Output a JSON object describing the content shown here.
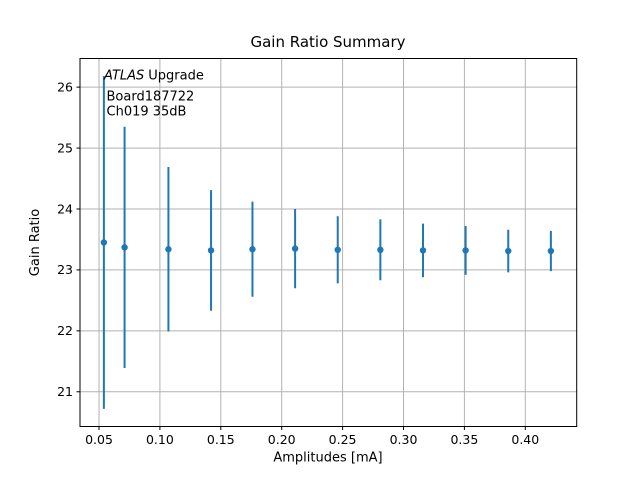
{
  "chart_data": {
    "type": "scatter",
    "title": "Gain Ratio Summary",
    "xlabel": "Amplitudes [mA]",
    "ylabel": "Gain Ratio",
    "annotation": {
      "line1_italic": "ATLAS",
      "line1_rest": "Upgrade",
      "line2": "Board187722",
      "line3": "Ch019 35dB"
    },
    "series": [
      {
        "name": "gain-ratio-vs-amplitude",
        "color": "#1f77b4",
        "x": [
          0.054,
          0.071,
          0.107,
          0.142,
          0.176,
          0.211,
          0.246,
          0.281,
          0.316,
          0.351,
          0.386,
          0.421
        ],
        "y": [
          23.45,
          23.37,
          23.34,
          23.32,
          23.34,
          23.35,
          23.33,
          23.33,
          23.32,
          23.32,
          23.31,
          23.31
        ],
        "yerr": [
          2.73,
          1.98,
          1.35,
          0.99,
          0.78,
          0.65,
          0.55,
          0.5,
          0.44,
          0.4,
          0.35,
          0.33
        ]
      }
    ],
    "xticks": [
      0.05,
      0.1,
      0.15,
      0.2,
      0.25,
      0.3,
      0.35,
      0.4
    ],
    "xtick_labels": [
      "0.05",
      "0.10",
      "0.15",
      "0.20",
      "0.25",
      "0.30",
      "0.35",
      "0.40"
    ],
    "yticks": [
      21,
      22,
      23,
      24,
      25,
      26
    ],
    "ytick_labels": [
      "21",
      "22",
      "23",
      "24",
      "25",
      "26"
    ],
    "xlim": [
      0.0344,
      0.4422
    ],
    "ylim": [
      20.43,
      26.47
    ],
    "grid": true,
    "legend": false,
    "colors": {
      "series": "#1f77b4",
      "grid": "#b2b2b2",
      "spine": "#000000",
      "background": "#ffffff",
      "text": "#000000"
    }
  }
}
